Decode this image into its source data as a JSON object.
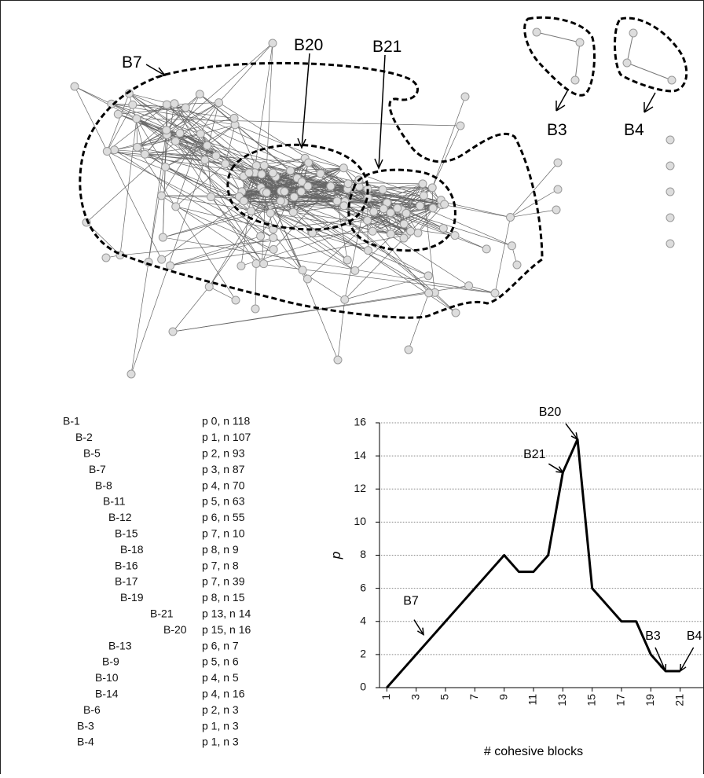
{
  "network": {
    "labels": [
      "B7",
      "B20",
      "B21",
      "B3",
      "B4"
    ]
  },
  "blocks": {
    "rows": [
      [
        "B-1",
        "p 0, n 118"
      ],
      [
        "B-2",
        "p 1, n 107"
      ],
      [
        "B-5",
        "p 2, n 93"
      ],
      [
        "B-7",
        "p 3, n 87"
      ],
      [
        "B-8",
        "p 4, n 70"
      ],
      [
        "B-11",
        "p 5, n 63"
      ],
      [
        "B-12",
        "p 6, n 55"
      ],
      [
        "B-15",
        "p 7, n 10"
      ],
      [
        "B-18",
        "p 8, n 9"
      ],
      [
        "B-16",
        "p 7, n 8"
      ],
      [
        "B-17",
        "p 7, n 39"
      ],
      [
        "B-19",
        "p 8, n 15"
      ],
      [
        "B-21",
        "p 13, n 14"
      ],
      [
        "B-20",
        "p 15, n 16"
      ],
      [
        "B-13",
        "p 6, n 7"
      ],
      [
        "B-9",
        "p 5, n 6"
      ],
      [
        "B-10",
        "p 4, n 5"
      ],
      [
        "B-14",
        "p 4, n 16"
      ],
      [
        "B-6",
        "p 2, n 3"
      ],
      [
        "B-3",
        "p 1, n 3"
      ],
      [
        "B-4",
        "p 1, n 3"
      ]
    ]
  },
  "chart_data": {
    "type": "line",
    "x_label": "# cohesive blocks",
    "y_label": "p",
    "x": [
      1,
      2,
      3,
      4,
      5,
      6,
      7,
      8,
      9,
      10,
      11,
      12,
      13,
      14,
      15,
      16,
      17,
      18,
      19,
      20,
      21
    ],
    "values": [
      0,
      1,
      2,
      3,
      4,
      5,
      6,
      7,
      8,
      7,
      7,
      8,
      13,
      15,
      6,
      5,
      4,
      4,
      2,
      1,
      1
    ],
    "color": "#000000",
    "xlim": [
      0.5,
      21.5
    ],
    "xticks": [
      1,
      3,
      5,
      7,
      9,
      11,
      13,
      15,
      17,
      19,
      21
    ],
    "ylim": [
      0,
      16
    ],
    "yticks": [
      0,
      2,
      4,
      6,
      8,
      10,
      12,
      14,
      16
    ],
    "grid": true,
    "annotations": [
      {
        "text": "B20",
        "x": 14,
        "y": 15
      },
      {
        "text": "B21",
        "x": 13,
        "y": 13
      },
      {
        "text": "B7",
        "x": 3.5,
        "y": 3.2
      },
      {
        "text": "B3",
        "x": 20,
        "y": 1
      },
      {
        "text": "B4",
        "x": 21,
        "y": 1
      }
    ]
  }
}
